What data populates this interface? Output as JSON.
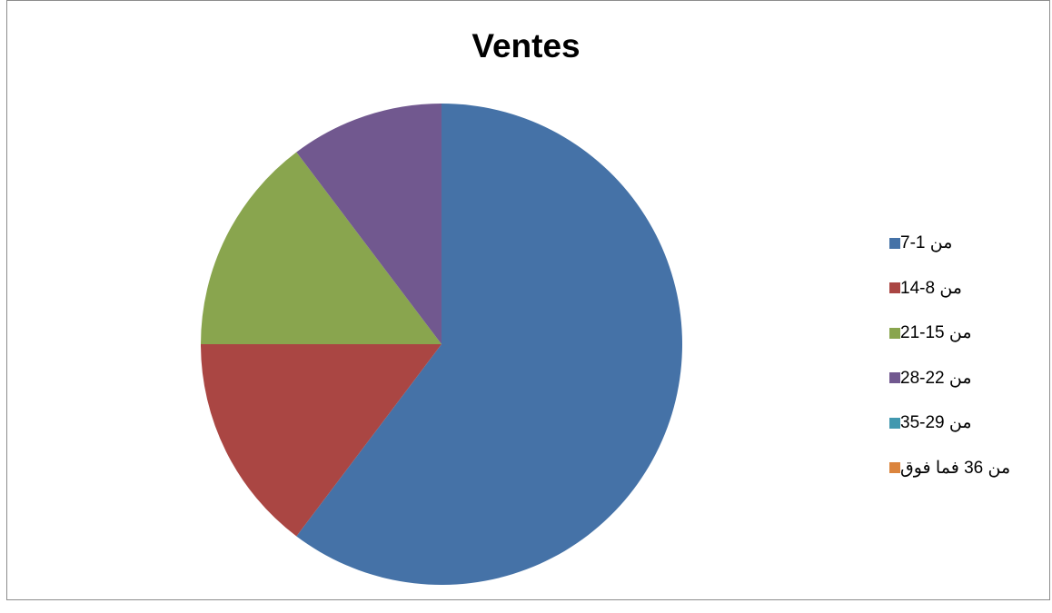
{
  "chart_data": {
    "type": "pie",
    "title": "Ventes",
    "categories": [
      "من 1-7",
      "من 8-14",
      "من 15-21",
      "من 22-28",
      "من 29-35",
      "من 36 فما فوق"
    ],
    "values": [
      8.2,
      2,
      2,
      1.4,
      0,
      0
    ],
    "colors": [
      "#4572a7",
      "#aa4643",
      "#89a54e",
      "#71588f",
      "#4198af",
      "#db843d"
    ],
    "start_angle": "12 o'clock",
    "direction": "clockwise",
    "legend": "right"
  }
}
